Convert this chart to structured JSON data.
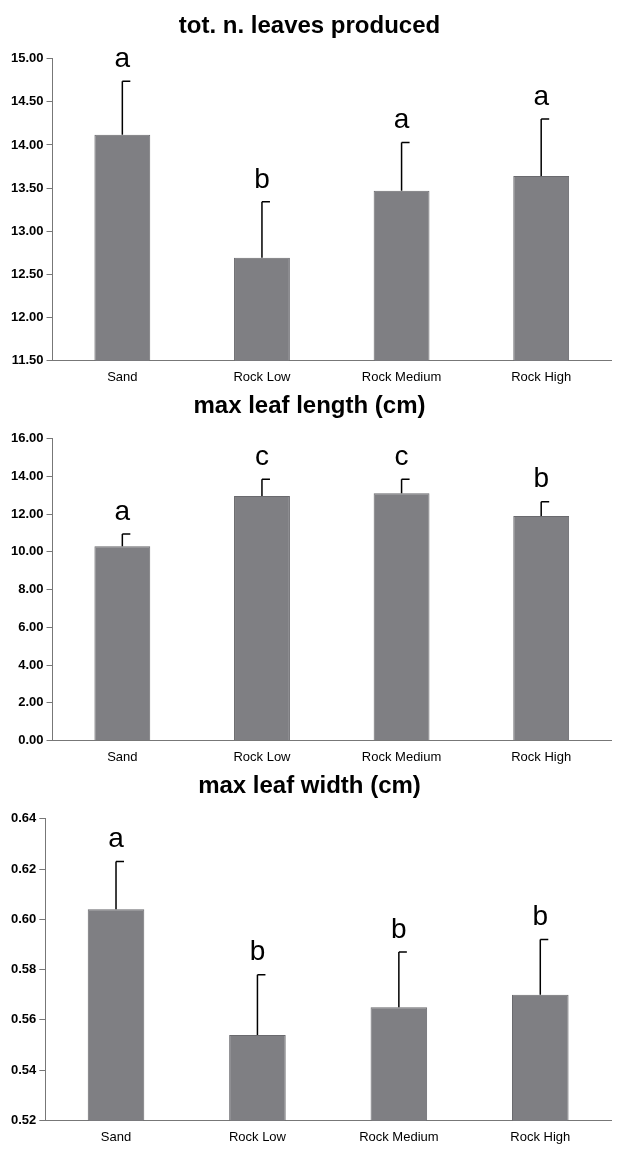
{
  "chart_data": [
    {
      "type": "bar",
      "title": "tot. n. leaves produced",
      "categories": [
        "Sand",
        "Rock Low",
        "Rock Medium",
        "Rock High"
      ],
      "values": [
        14.12,
        12.69,
        13.47,
        13.64
      ],
      "value_labels": [
        "a",
        "b",
        "a",
        "a"
      ],
      "errors": [
        [
          14.12,
          14.74
        ],
        [
          12.69,
          13.34
        ],
        [
          13.47,
          14.03
        ],
        [
          13.64,
          14.3
        ]
      ],
      "color": "#7f7f83",
      "ylim": [
        11.5,
        15
      ],
      "yticks": [
        {
          "value": 11.5,
          "label": "11.50"
        },
        {
          "value": 12,
          "label": "12.00"
        },
        {
          "value": 12.5,
          "label": "12.50"
        },
        {
          "value": 13,
          "label": "13.00"
        },
        {
          "value": 13.5,
          "label": "13.50"
        },
        {
          "value": 14,
          "label": "14.00"
        },
        {
          "value": 14.5,
          "label": "14.50"
        },
        {
          "value": 15,
          "label": "15.00"
        }
      ],
      "grid": false,
      "legend": false
    },
    {
      "type": "bar",
      "title": "max leaf length (cm)",
      "categories": [
        "Sand",
        "Rock Low",
        "Rock Medium",
        "Rock High"
      ],
      "values": [
        10.3,
        12.97,
        13.11,
        11.91
      ],
      "value_labels": [
        "a",
        "c",
        "c",
        "b"
      ],
      "errors": [
        [
          10.3,
          10.95
        ],
        [
          12.97,
          13.86
        ],
        [
          13.11,
          13.86
        ],
        [
          11.91,
          12.66
        ]
      ],
      "color": "#7f7f83",
      "ylim": [
        0,
        16
      ],
      "yticks": [
        {
          "value": 0,
          "label": "0.00"
        },
        {
          "value": 2,
          "label": "2.00"
        },
        {
          "value": 4,
          "label": "4.00"
        },
        {
          "value": 6,
          "label": "6.00"
        },
        {
          "value": 8,
          "label": "8.00"
        },
        {
          "value": 10,
          "label": "10.00"
        },
        {
          "value": 12,
          "label": "12.00"
        },
        {
          "value": 14,
          "label": "14.00"
        },
        {
          "value": 16,
          "label": "16.00"
        }
      ],
      "grid": false,
      "legend": false
    },
    {
      "type": "bar",
      "title": "max leaf width (cm)",
      "categories": [
        "Sand",
        "Rock Low",
        "Rock Medium",
        "Rock High"
      ],
      "values": [
        0.604,
        0.554,
        0.565,
        0.57
      ],
      "value_labels": [
        "a",
        "b",
        "b",
        "b"
      ],
      "errors": [
        [
          0.604,
          0.623
        ],
        [
          0.554,
          0.578
        ],
        [
          0.565,
          0.587
        ],
        [
          0.57,
          0.592
        ]
      ],
      "color": "#7f7f83",
      "ylim": [
        0.52,
        0.64
      ],
      "yticks": [
        {
          "value": 0.52,
          "label": "0.52"
        },
        {
          "value": 0.54,
          "label": "0.54"
        },
        {
          "value": 0.56,
          "label": "0.56"
        },
        {
          "value": 0.58,
          "label": "0.58"
        },
        {
          "value": 0.6,
          "label": "0.60"
        },
        {
          "value": 0.62,
          "label": "0.62"
        },
        {
          "value": 0.64,
          "label": "0.64"
        }
      ],
      "grid": false,
      "legend": false
    }
  ]
}
